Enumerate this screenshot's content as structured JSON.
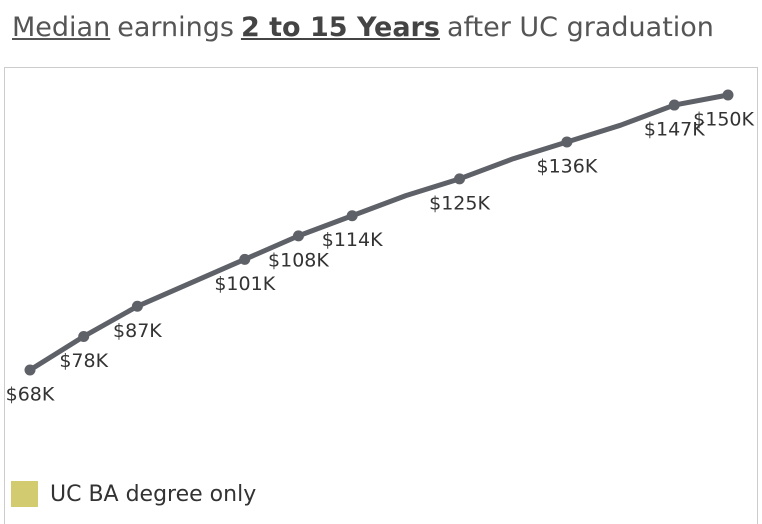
{
  "chart_data": {
    "type": "line",
    "title_parts": [
      {
        "text": "Median",
        "underline": true,
        "bold": false
      },
      {
        "text": "earnings",
        "underline": false,
        "bold": false
      },
      {
        "text": "2 to 15 Years",
        "underline": true,
        "bold": true
      },
      {
        "text": "after UC graduation",
        "underline": false,
        "bold": false
      }
    ],
    "categories": [
      null,
      null,
      null,
      null,
      null,
      null,
      null,
      null,
      null,
      null,
      null,
      null,
      null,
      null
    ],
    "line_color": "#5f6168",
    "series": [
      {
        "name": "UC BA degree only",
        "color": "#d3cb70",
        "values": [
          68,
          78,
          87,
          94,
          101,
          108,
          114,
          120,
          125,
          131,
          136,
          141,
          147,
          150
        ],
        "value_labels": [
          "$68K",
          "$78K",
          "$87K",
          null,
          "$101K",
          "$108K",
          "$114K",
          null,
          "$125K",
          null,
          "$136K",
          null,
          "$147K",
          "$150K"
        ]
      }
    ],
    "legend": "bottom-left"
  }
}
